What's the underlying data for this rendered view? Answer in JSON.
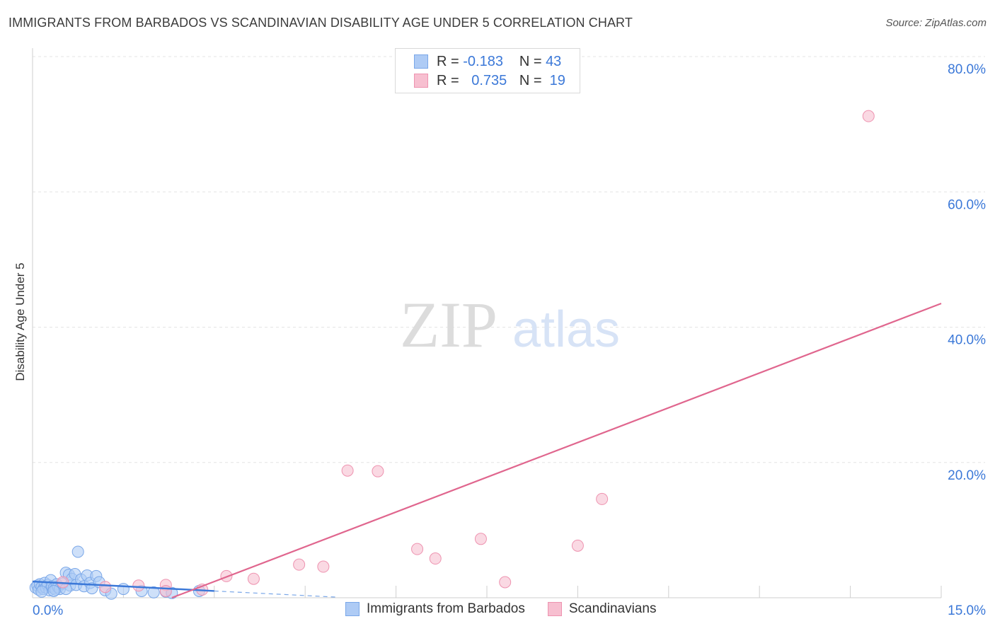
{
  "title": "IMMIGRANTS FROM BARBADOS VS SCANDINAVIAN DISABILITY AGE UNDER 5 CORRELATION CHART",
  "source": "Source: ZipAtlas.com",
  "watermark": {
    "part1": "ZIP",
    "part2": "atlas"
  },
  "legend": {
    "rows": [
      {
        "r_label": "R =",
        "r_value": "-0.183",
        "n_label": "N =",
        "n_value": "43"
      },
      {
        "r_label": "R =",
        "r_value": "0.735",
        "n_label": "N =",
        "n_value": "19"
      }
    ]
  },
  "colors": {
    "blue": "#3b78d8",
    "blue_fill": "#aecbf5",
    "blue_stroke": "#7aa7e8",
    "pink": "#e0668e",
    "pink_fill": "#f7bfd0",
    "pink_stroke": "#ee93b0",
    "grid": "#e4e4e4",
    "tick_label": "#3b78d8"
  },
  "chart_data": {
    "type": "scatter",
    "title": "IMMIGRANTS FROM BARBADOS VS SCANDINAVIAN DISABILITY AGE UNDER 5 CORRELATION CHART",
    "xlabel": "",
    "ylabel": "Disability Age Under 5",
    "xlim": [
      0,
      15
    ],
    "ylim": [
      0,
      80
    ],
    "x_tick_labels": [
      "0.0%",
      "15.0%"
    ],
    "y_tick_labels": [
      "20.0%",
      "40.0%",
      "60.0%",
      "80.0%"
    ],
    "y_ticks": [
      20,
      40,
      60,
      80
    ],
    "series": [
      {
        "name": "Immigrants from Barbados",
        "color": "blue",
        "points": [
          [
            0.05,
            1.5
          ],
          [
            0.08,
            1.8
          ],
          [
            0.1,
            1.2
          ],
          [
            0.12,
            2.0
          ],
          [
            0.15,
            1.6
          ],
          [
            0.18,
            1.3
          ],
          [
            0.2,
            2.2
          ],
          [
            0.22,
            1.5
          ],
          [
            0.25,
            1.9
          ],
          [
            0.28,
            1.1
          ],
          [
            0.3,
            2.6
          ],
          [
            0.32,
            1.7
          ],
          [
            0.35,
            1.4
          ],
          [
            0.38,
            1.2
          ],
          [
            0.4,
            2.0
          ],
          [
            0.42,
            1.6
          ],
          [
            0.45,
            1.3
          ],
          [
            0.5,
            2.1
          ],
          [
            0.55,
            3.7
          ],
          [
            0.6,
            3.4
          ],
          [
            0.62,
            1.8
          ],
          [
            0.65,
            2.8
          ],
          [
            0.7,
            3.5
          ],
          [
            0.72,
            1.9
          ],
          [
            0.75,
            6.8
          ],
          [
            0.8,
            2.7
          ],
          [
            0.85,
            1.7
          ],
          [
            0.9,
            3.3
          ],
          [
            0.95,
            2.2
          ],
          [
            0.98,
            1.4
          ],
          [
            1.05,
            3.2
          ],
          [
            1.1,
            2.3
          ],
          [
            1.2,
            1.1
          ],
          [
            1.3,
            0.6
          ],
          [
            1.5,
            1.3
          ],
          [
            1.8,
            1.0
          ],
          [
            2.0,
            0.8
          ],
          [
            2.2,
            0.9
          ],
          [
            2.3,
            0.7
          ],
          [
            0.15,
            0.9
          ],
          [
            0.35,
            1.0
          ],
          [
            0.55,
            1.3
          ],
          [
            2.75,
            1.0
          ]
        ]
      },
      {
        "name": "Scandinavians",
        "color": "pink",
        "points": [
          [
            0.5,
            2.3
          ],
          [
            1.2,
            1.6
          ],
          [
            1.75,
            1.8
          ],
          [
            2.2,
            1.9
          ],
          [
            2.2,
            1.0
          ],
          [
            2.8,
            1.2
          ],
          [
            3.2,
            3.2
          ],
          [
            3.65,
            2.8
          ],
          [
            4.4,
            4.9
          ],
          [
            4.8,
            4.6
          ],
          [
            5.2,
            18.8
          ],
          [
            5.7,
            18.7
          ],
          [
            6.35,
            7.2
          ],
          [
            6.65,
            5.8
          ],
          [
            7.4,
            8.7
          ],
          [
            7.8,
            2.3
          ],
          [
            9.0,
            7.7
          ],
          [
            9.4,
            14.6
          ],
          [
            13.8,
            71.2
          ]
        ]
      }
    ],
    "trend_lines": [
      {
        "series": "Immigrants from Barbados",
        "x": [
          0.0,
          3.0
        ],
        "y": [
          2.4,
          1.0
        ],
        "dashed_extension": {
          "x": [
            3.0,
            5.0
          ],
          "y": [
            1.0,
            0.1
          ]
        }
      },
      {
        "series": "Scandinavians",
        "x": [
          2.3,
          15.0
        ],
        "y": [
          0.0,
          43.5
        ]
      }
    ],
    "legend": [
      "Immigrants from Barbados",
      "Scandinavians"
    ]
  }
}
